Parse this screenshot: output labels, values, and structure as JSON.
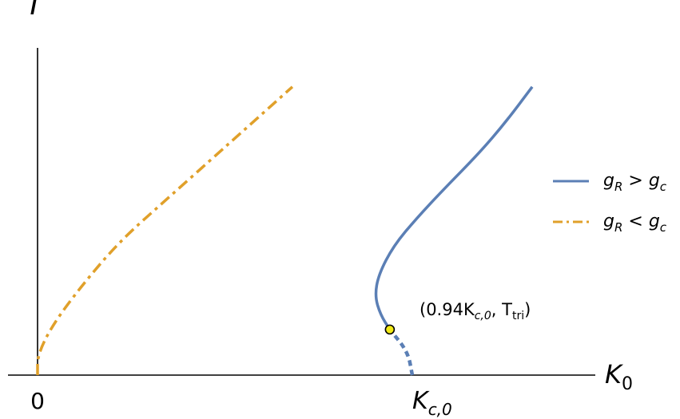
{
  "chart_data": {
    "type": "line",
    "title": "",
    "xlabel": "K",
    "xlabel_sub": "0",
    "ylabel": "T",
    "x_ticks": [
      {
        "x": 0,
        "text": "0"
      },
      {
        "x": 1,
        "text": "K",
        "sub": "c,0"
      }
    ],
    "xlim": [
      -0.07,
      1.42
    ],
    "ylim": [
      0,
      1.0
    ],
    "grid": false,
    "legend_position": "right",
    "series": [
      {
        "name": "g_R > g_c",
        "legend_main_a": "g",
        "legend_sub_a": "R",
        "legend_op": " > ",
        "legend_main_b": "g",
        "legend_sub_b": "c",
        "color": "#5b7fb5",
        "style": "solid",
        "points": [
          [
            1.0,
            0.0
          ],
          [
            0.988,
            0.07
          ],
          [
            0.94,
            0.136
          ],
          [
            0.915,
            0.18
          ],
          [
            0.9,
            0.236
          ],
          [
            0.91,
            0.3
          ],
          [
            0.95,
            0.386
          ],
          [
            1.01,
            0.466
          ],
          [
            1.08,
            0.55
          ],
          [
            1.18,
            0.664
          ],
          [
            1.25,
            0.756
          ],
          [
            1.32,
            0.86
          ]
        ],
        "dashed_until_index": 2
      },
      {
        "name": "g_R < g_c",
        "legend_main_a": "g",
        "legend_sub_a": "R",
        "legend_op": " < ",
        "legend_main_b": "g",
        "legend_sub_b": "c",
        "color": "#e0a02a",
        "style": "dashdot",
        "points": [
          [
            0.0,
            0.0
          ],
          [
            0.0,
            0.06
          ],
          [
            0.04,
            0.15
          ],
          [
            0.12,
            0.27
          ],
          [
            0.22,
            0.4
          ],
          [
            0.34,
            0.52
          ],
          [
            0.46,
            0.64
          ],
          [
            0.57,
            0.75
          ],
          [
            0.68,
            0.86
          ]
        ]
      }
    ],
    "annotations": [
      {
        "x": 0.94,
        "y": 0.136,
        "marker_color": "#f2ea16",
        "text_main": "(0.94K",
        "text_sub": "c,0",
        "text_mid": ", T",
        "text_sub2": "tri",
        "text_end": ")"
      }
    ]
  }
}
